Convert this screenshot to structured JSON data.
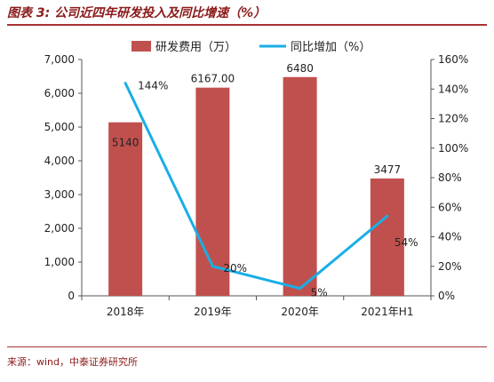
{
  "header": {
    "figure_number": "图表 3:",
    "title": "公司近四年研发投入及同比增速（%）"
  },
  "source": "来源：wind，中泰证券研究所",
  "colors": {
    "bar": "#c0504d",
    "line": "#19aee6",
    "title": "#8b1a1a"
  },
  "chart_data": {
    "type": "bar",
    "categories": [
      "2018年",
      "2019年",
      "2020年",
      "2021年H1"
    ],
    "series": [
      {
        "name": "研发费用（万）",
        "type": "bar",
        "axis": "left",
        "values": [
          5140,
          6167.0,
          6480,
          3477
        ],
        "labels": [
          "5140",
          "6167.00",
          "6480",
          "3477"
        ]
      },
      {
        "name": "同比增加（%）",
        "type": "line",
        "axis": "right",
        "values": [
          144,
          20,
          5,
          54
        ],
        "labels": [
          "144%",
          "20%",
          "5%",
          "54%"
        ]
      }
    ],
    "y_left": {
      "min": 0,
      "max": 7000,
      "step": 1000,
      "ticks": [
        "0",
        "1,000",
        "2,000",
        "3,000",
        "4,000",
        "5,000",
        "6,000",
        "7,000"
      ]
    },
    "y_right": {
      "min": 0,
      "max": 160,
      "step": 20,
      "ticks": [
        "0%",
        "20%",
        "40%",
        "60%",
        "80%",
        "100%",
        "120%",
        "140%",
        "160%"
      ]
    },
    "legend_position": "top",
    "grid": false
  }
}
